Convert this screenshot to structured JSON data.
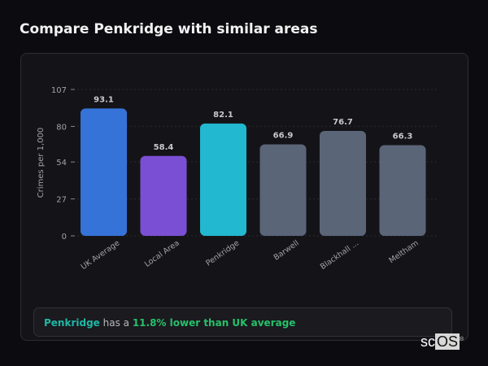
{
  "title": "Compare Penkridge with similar areas",
  "chart_data": {
    "type": "bar",
    "categories": [
      "UK Average",
      "Local Area",
      "Penkridge",
      "Barwell",
      "Blackhall ...",
      "Meltham"
    ],
    "values": [
      93.1,
      58.4,
      82.1,
      66.9,
      76.7,
      66.3
    ],
    "colors": [
      "#3573d9",
      "#7b4fd4",
      "#22b8cf",
      "#5b6578",
      "#5b6578",
      "#5b6578"
    ],
    "ylabel": "Crimes per 1,000",
    "yticks": [
      0,
      27,
      54,
      80,
      107
    ],
    "ylim": [
      0,
      107
    ],
    "grid": true
  },
  "summary": {
    "place": "Penkridge",
    "mid": " has a ",
    "result": "11.8% lower than UK average"
  },
  "logo": {
    "text1": "sc",
    "text2": "OS"
  }
}
